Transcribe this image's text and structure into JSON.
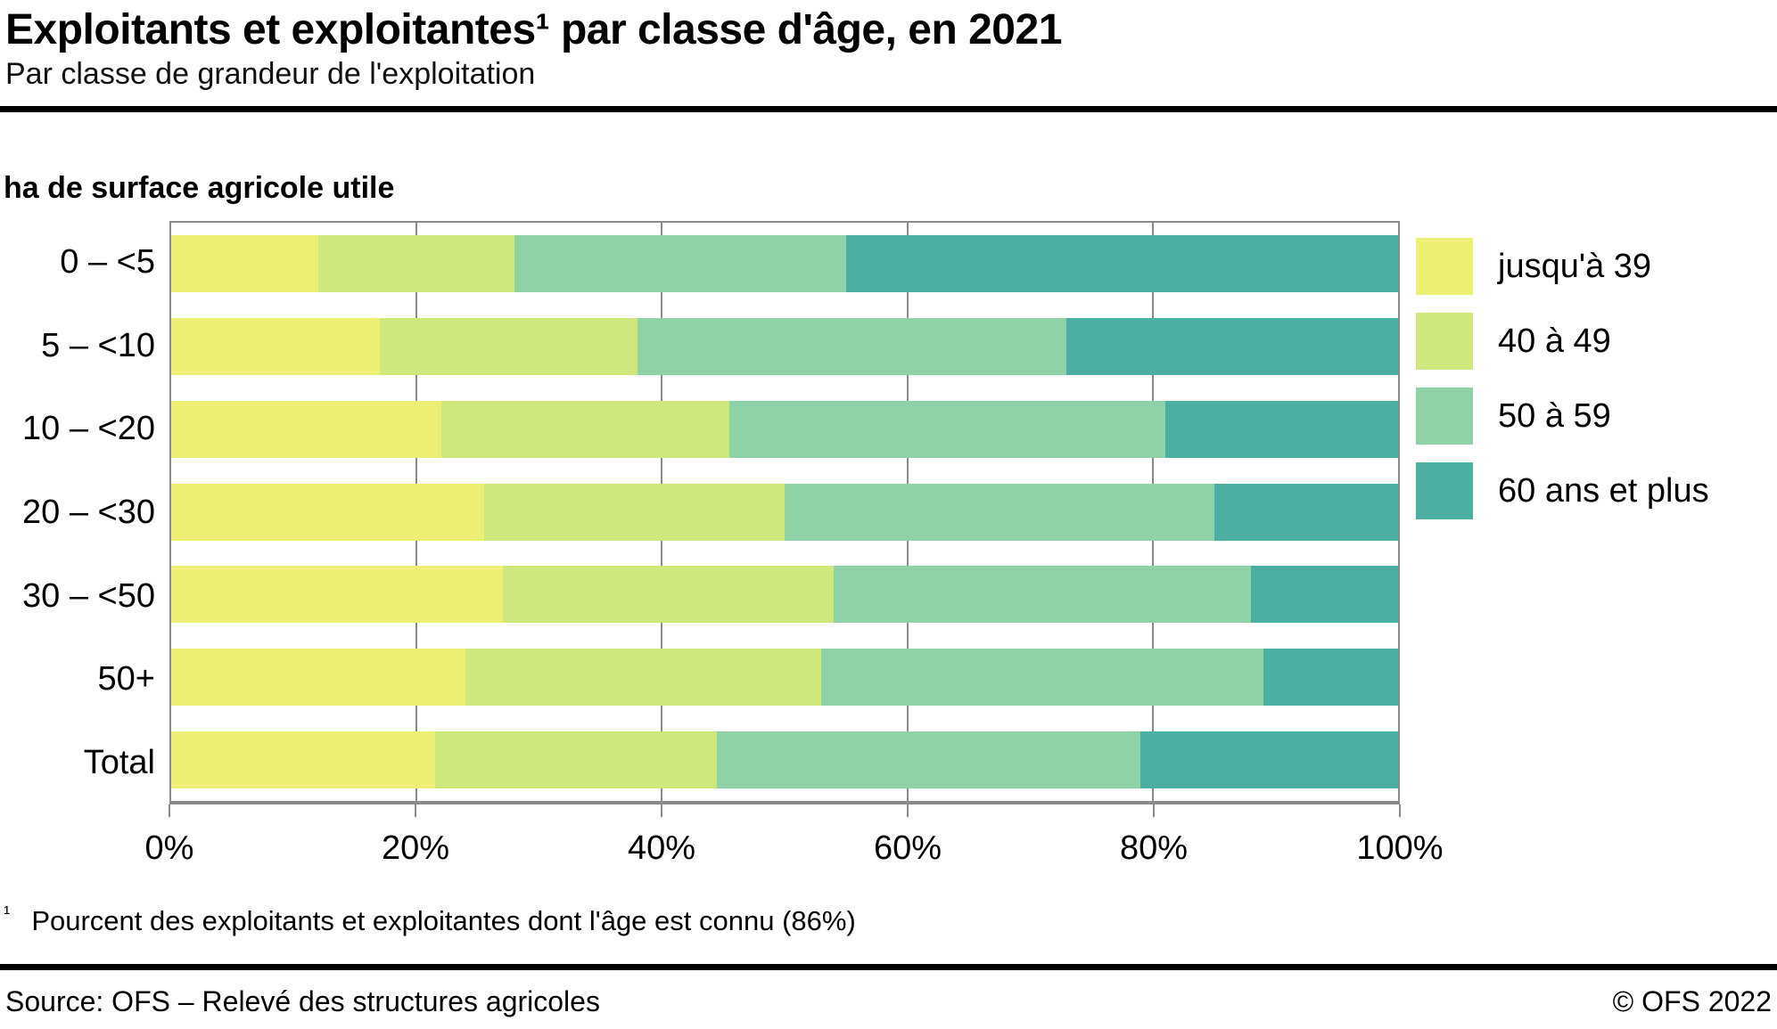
{
  "header": {
    "title": "Exploitants et exploitantes¹ par classe d'âge, en 2021",
    "subtitle": "Par classe de grandeur de l'exploitation"
  },
  "chart": {
    "axis_title": "ha de surface agricole utile"
  },
  "chart_data": {
    "type": "bar",
    "orientation": "horizontal",
    "stacked": true,
    "unit": "percent",
    "title": "Exploitants et exploitantes par classe d'âge, en 2021",
    "xlabel": "",
    "ylabel": "ha de surface agricole utile",
    "xlim": [
      0,
      100
    ],
    "grid": true,
    "legend_position": "right",
    "categories": [
      "0 – <5",
      "5 – <10",
      "10 – <20",
      "20 – <30",
      "30 – <50",
      "50+",
      "Total"
    ],
    "x_ticks": [
      "0%",
      "20%",
      "40%",
      "60%",
      "80%",
      "100%"
    ],
    "series": [
      {
        "name": "jusqu'à 39",
        "color": "#edee74",
        "values": [
          12,
          17,
          22,
          25.5,
          27,
          24,
          21.5
        ]
      },
      {
        "name": "40 à 49",
        "color": "#cee87d",
        "values": [
          16,
          21,
          23.5,
          24.5,
          27,
          29,
          23
        ]
      },
      {
        "name": "50 à 59",
        "color": "#90d2a8",
        "values": [
          27,
          35,
          35.5,
          35,
          34,
          36,
          34.5
        ]
      },
      {
        "name": "60 ans et plus",
        "color": "#4dafa1",
        "values": [
          45,
          27,
          19,
          15,
          12,
          11,
          21
        ]
      }
    ]
  },
  "footnote": {
    "marker": "¹",
    "text": "Pourcent des exploitants et exploitantes dont l'âge est connu (86%)"
  },
  "footer": {
    "source": "Source: OFS – Relevé des structures agricoles",
    "copyright": "© OFS 2022"
  },
  "colors": {
    "grid": "#8a8a8a",
    "rule": "#000000",
    "text": "#000000"
  }
}
